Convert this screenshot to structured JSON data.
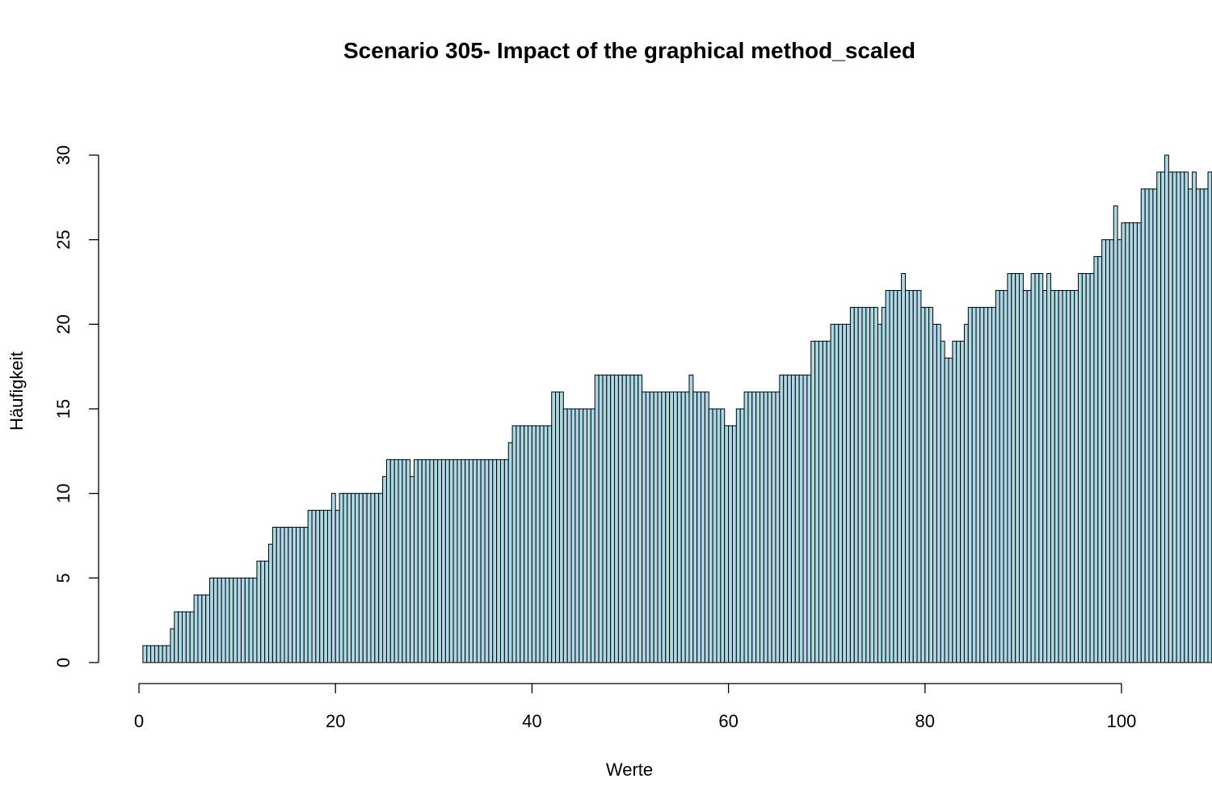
{
  "colors": {
    "bar_fill": "#add8e6",
    "bar_stroke": "#000000",
    "axis": "#000000",
    "background": "#ffffff"
  },
  "chart_data": {
    "type": "bar",
    "title": "Scenario 305- Impact of the graphical method_scaled",
    "xlabel": "Werte",
    "ylabel": "Häufigkeit",
    "xlim": [
      0,
      100
    ],
    "ylim": [
      0,
      32
    ],
    "xticks": [
      0,
      20,
      40,
      60,
      80,
      100
    ],
    "yticks": [
      0,
      5,
      10,
      15,
      20,
      25,
      30
    ],
    "bin_width": 0.4,
    "bin_start": 0,
    "grid": false,
    "legend": "none",
    "values": [
      0,
      1,
      1,
      1,
      1,
      1,
      1,
      1,
      2,
      3,
      3,
      3,
      3,
      3,
      4,
      4,
      4,
      4,
      5,
      5,
      5,
      5,
      5,
      5,
      5,
      5,
      5,
      5,
      5,
      5,
      6,
      6,
      6,
      7,
      8,
      8,
      8,
      8,
      8,
      8,
      8,
      8,
      8,
      9,
      9,
      9,
      9,
      9,
      9,
      10,
      9,
      10,
      10,
      10,
      10,
      10,
      10,
      10,
      10,
      10,
      10,
      10,
      11,
      12,
      12,
      12,
      12,
      12,
      12,
      11,
      12,
      12,
      12,
      12,
      12,
      12,
      12,
      12,
      12,
      12,
      12,
      12,
      12,
      12,
      12,
      12,
      12,
      12,
      12,
      12,
      12,
      12,
      12,
      12,
      13,
      14,
      14,
      14,
      14,
      14,
      14,
      14,
      14,
      14,
      14,
      16,
      16,
      16,
      15,
      15,
      15,
      15,
      15,
      15,
      15,
      15,
      17,
      17,
      17,
      17,
      17,
      17,
      17,
      17,
      17,
      17,
      17,
      17,
      16,
      16,
      16,
      16,
      16,
      16,
      16,
      16,
      16,
      16,
      16,
      16,
      17,
      16,
      16,
      16,
      16,
      15,
      15,
      15,
      15,
      14,
      14,
      14,
      15,
      15,
      16,
      16,
      16,
      16,
      16,
      16,
      16,
      16,
      16,
      17,
      17,
      17,
      17,
      17,
      17,
      17,
      17,
      19,
      19,
      19,
      19,
      19,
      20,
      20,
      20,
      20,
      20,
      21,
      21,
      21,
      21,
      21,
      21,
      21,
      20,
      21,
      22,
      22,
      22,
      22,
      23,
      22,
      22,
      22,
      22,
      21,
      21,
      21,
      20,
      20,
      19,
      18,
      18,
      19,
      19,
      19,
      20,
      21,
      21,
      21,
      21,
      21,
      21,
      21,
      22,
      22,
      22,
      23,
      23,
      23,
      23,
      22,
      22,
      23,
      23,
      23,
      22,
      23,
      22,
      22,
      22,
      22,
      22,
      22,
      22,
      23,
      23,
      23,
      23,
      24,
      24,
      25,
      25,
      25,
      27,
      25,
      26,
      26,
      26,
      26,
      26,
      28,
      28,
      28,
      28,
      29,
      29,
      30,
      29,
      29,
      29,
      29,
      29,
      28,
      29,
      28,
      28,
      28,
      29,
      29,
      28,
      28,
      27,
      27,
      27,
      27,
      26,
      27,
      27,
      27,
      27,
      27,
      28,
      28,
      28,
      28,
      28,
      28,
      28,
      28,
      28,
      29,
      29,
      30,
      31,
      29,
      29,
      27,
      27,
      26,
      27,
      28,
      29,
      29,
      29,
      30,
      31,
      31,
      31,
      32,
      31,
      31,
      30,
      30,
      30,
      30,
      30,
      30,
      30,
      30,
      30,
      29,
      29,
      28,
      28,
      28,
      28,
      27,
      27,
      27,
      27,
      27,
      26,
      27,
      27,
      27,
      27,
      27,
      28,
      28,
      27,
      27,
      27,
      27,
      26,
      26,
      26,
      26,
      26,
      26,
      26,
      26,
      24,
      24,
      24,
      24,
      24,
      23,
      22,
      21,
      20,
      20,
      18,
      18,
      13,
      10,
      9,
      8,
      6,
      4
    ]
  }
}
